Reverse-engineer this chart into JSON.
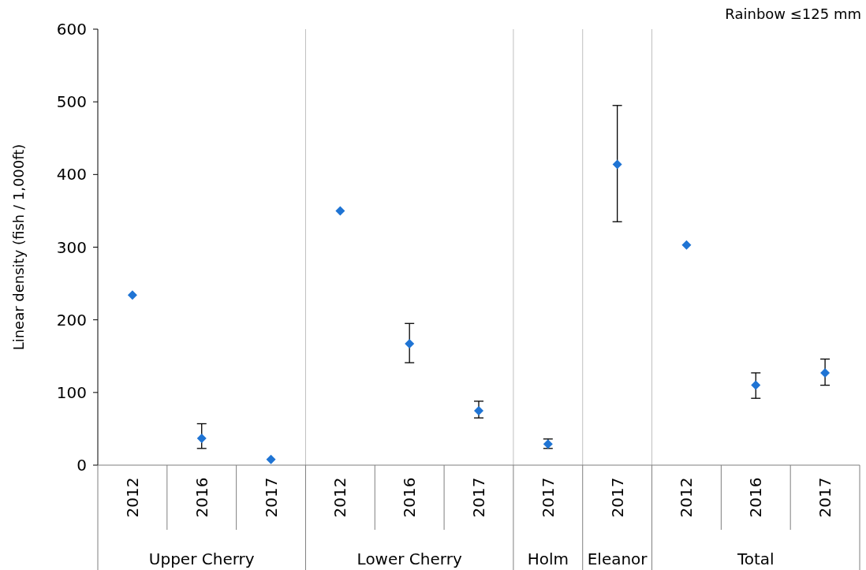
{
  "chart_data": {
    "type": "scatter",
    "title": "Rainbow ≤125 mm",
    "ylabel": "Linear density (fish / 1,000ft)",
    "categories": [
      "2012",
      "2016",
      "2017",
      "2012",
      "2016",
      "2017",
      "2017",
      "2017",
      "2012",
      "2016",
      "2017"
    ],
    "series": [
      {
        "color": "#1f74d4",
        "values": [
          234,
          37,
          8,
          350,
          167,
          75,
          29,
          414,
          303,
          110,
          127
        ],
        "errors": [
          null,
          [
            23,
            57
          ],
          null,
          null,
          [
            141,
            195
          ],
          [
            65,
            88
          ],
          [
            23,
            36
          ],
          [
            335,
            495
          ],
          null,
          [
            92,
            127
          ],
          [
            110,
            146
          ]
        ]
      }
    ],
    "annotations": [
      "Upper Cherry",
      "Lower Cherry",
      "Holm",
      "Eleanor",
      "Total"
    ],
    "ylim": [
      0,
      600
    ],
    "yticks": [
      0,
      100,
      200,
      300,
      400,
      500,
      600
    ],
    "grid": false,
    "marker": "diamond"
  }
}
